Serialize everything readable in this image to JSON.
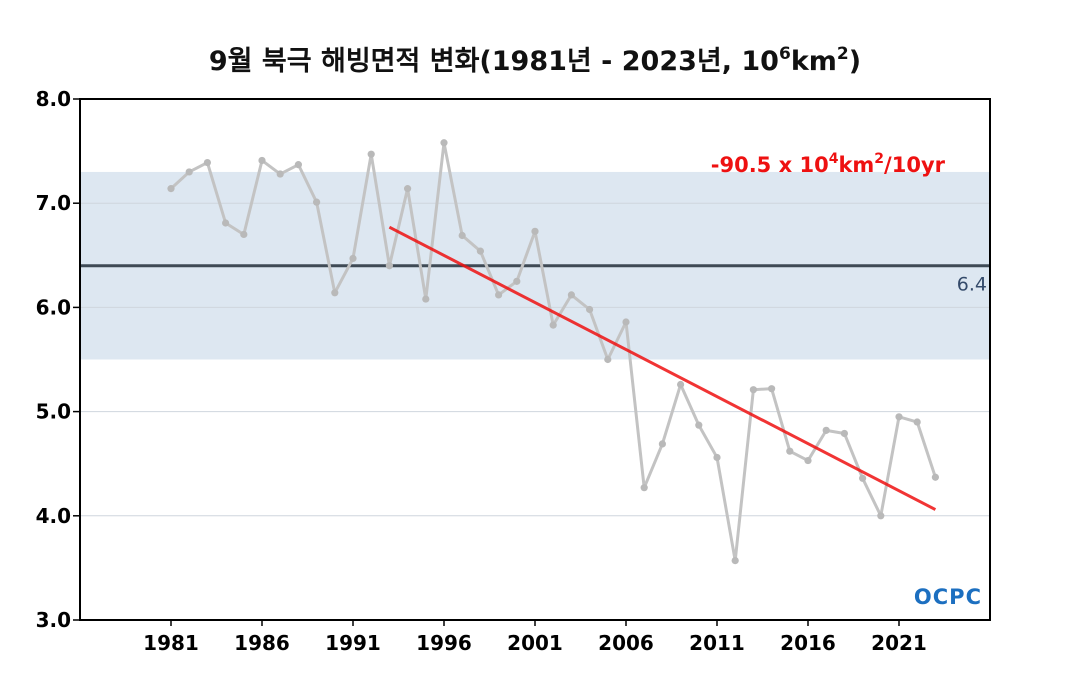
{
  "chart_data": {
    "type": "line",
    "title": {
      "prefix": "9월 북극 해빙면적 변화(1981년 - 2023년, 10",
      "sup1": "6",
      "mid": "km",
      "sup2": "2",
      "suffix": ")"
    },
    "x": [
      1981,
      1982,
      1983,
      1984,
      1985,
      1986,
      1987,
      1988,
      1989,
      1990,
      1991,
      1992,
      1993,
      1994,
      1995,
      1996,
      1997,
      1998,
      1999,
      2000,
      2001,
      2002,
      2003,
      2004,
      2005,
      2006,
      2007,
      2008,
      2009,
      2010,
      2011,
      2012,
      2013,
      2014,
      2015,
      2016,
      2017,
      2018,
      2019,
      2020,
      2021,
      2022,
      2023
    ],
    "series": [
      {
        "values": [
          7.14,
          7.3,
          7.39,
          6.81,
          6.7,
          7.41,
          7.28,
          7.37,
          7.01,
          6.14,
          6.47,
          7.47,
          6.4,
          7.14,
          6.08,
          7.58,
          6.69,
          6.54,
          6.12,
          6.25,
          6.73,
          5.83,
          6.12,
          5.98,
          5.5,
          5.86,
          4.27,
          4.69,
          5.26,
          4.87,
          4.56,
          3.57,
          5.21,
          5.22,
          4.62,
          4.53,
          4.82,
          4.79,
          4.36,
          4.0,
          4.95,
          4.9,
          4.37
        ],
        "color": "#c3c3c3"
      }
    ],
    "x_ticks": [
      "1981",
      "1986",
      "1991",
      "1996",
      "2001",
      "2006",
      "2011",
      "2016",
      "2021"
    ],
    "y_ticks": [
      "3.0",
      "4.0",
      "5.0",
      "6.0",
      "7.0",
      "8.0"
    ],
    "xlim": [
      1976,
      2026
    ],
    "ylim": [
      3.0,
      8.0
    ],
    "grid": true,
    "mean_line": {
      "value": 6.4,
      "label": "6.4",
      "color": "#3f4a55"
    },
    "band": {
      "low": 5.5,
      "high": 7.3,
      "color": "#dde7f1"
    },
    "trend": {
      "x_start": 1993,
      "y_start": 6.77,
      "x_end": 2023,
      "y_end": 4.06,
      "color": "#ee1111",
      "label": {
        "prefix": "-90.5 x 10",
        "sup1": "4",
        "mid": "km",
        "sup2": "2",
        "suffix": "/10yr"
      }
    },
    "logo": "OCPC"
  }
}
